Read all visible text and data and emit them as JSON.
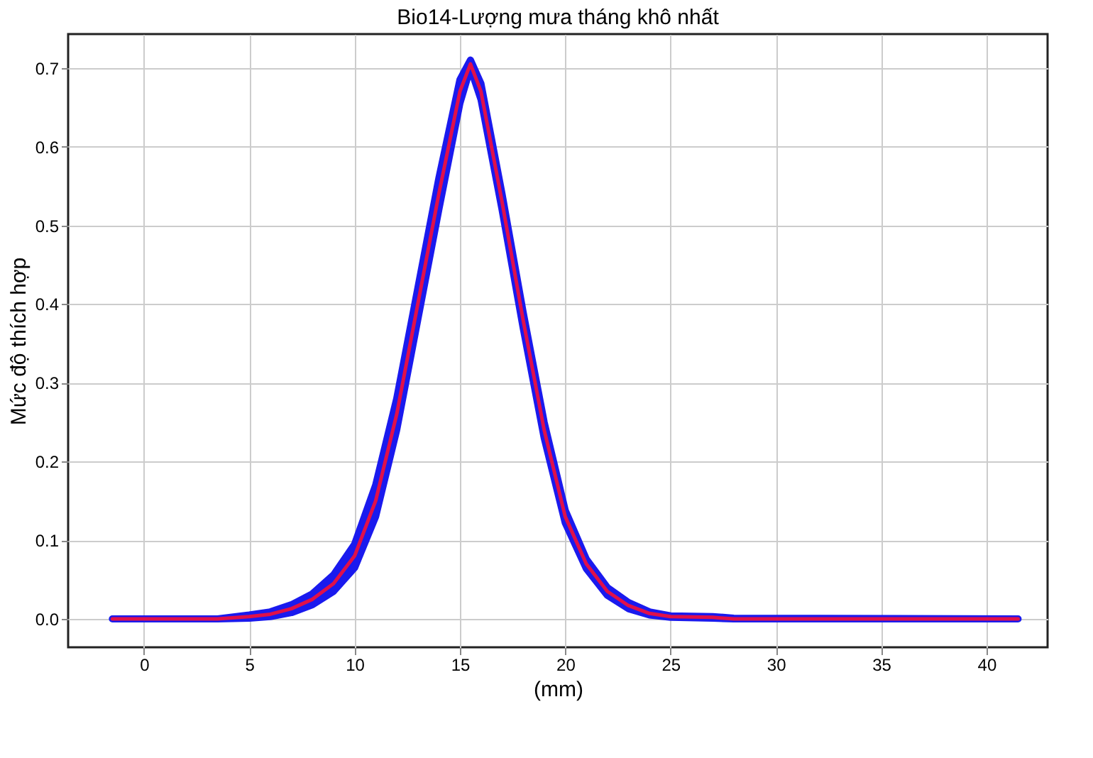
{
  "chart_data": {
    "type": "line",
    "title": "Bio14-Lượng mưa tháng khô nhất",
    "xlabel": "(mm)",
    "ylabel": "Mức độ thích hợp",
    "xlim": [
      -3.6,
      42.9
    ],
    "ylim": [
      -0.036,
      0.743
    ],
    "xticks": [
      0,
      5,
      10,
      15,
      20,
      25,
      30,
      35,
      40
    ],
    "yticks": [
      {
        "value": 0,
        "label": "0.0"
      },
      0.1,
      0.2,
      0.3,
      0.4,
      0.5,
      0.6,
      0.7
    ],
    "grid": true,
    "legend": false,
    "marker": "none",
    "line_style": "solid",
    "series": [
      {
        "color": "#e0104a",
        "x": [
          -1.5,
          3.5,
          5,
          6,
          7,
          8,
          9,
          10,
          11,
          12,
          13,
          14,
          15,
          15.5,
          16,
          17,
          18,
          19,
          20,
          21,
          22,
          23,
          24,
          25,
          27,
          28,
          41.5
        ],
        "values": [
          0,
          0,
          0.003,
          0.006,
          0.013,
          0.025,
          0.045,
          0.08,
          0.15,
          0.26,
          0.4,
          0.54,
          0.67,
          0.705,
          0.67,
          0.53,
          0.38,
          0.24,
          0.13,
          0.07,
          0.035,
          0.017,
          0.007,
          0.003,
          0.002,
          0,
          0
        ],
        "lower": [
          0,
          0,
          0.001,
          0.003,
          0.008,
          0.018,
          0.035,
          0.065,
          0.13,
          0.24,
          0.38,
          0.52,
          0.655,
          0.7,
          0.66,
          0.52,
          0.37,
          0.23,
          0.122,
          0.064,
          0.03,
          0.013,
          0.005,
          0.002,
          0.001,
          0,
          0
        ],
        "upper": [
          0,
          0,
          0.005,
          0.009,
          0.018,
          0.032,
          0.056,
          0.095,
          0.17,
          0.28,
          0.42,
          0.56,
          0.685,
          0.71,
          0.68,
          0.54,
          0.39,
          0.25,
          0.138,
          0.076,
          0.04,
          0.021,
          0.009,
          0.004,
          0.003,
          0.001,
          0
        ]
      }
    ]
  }
}
